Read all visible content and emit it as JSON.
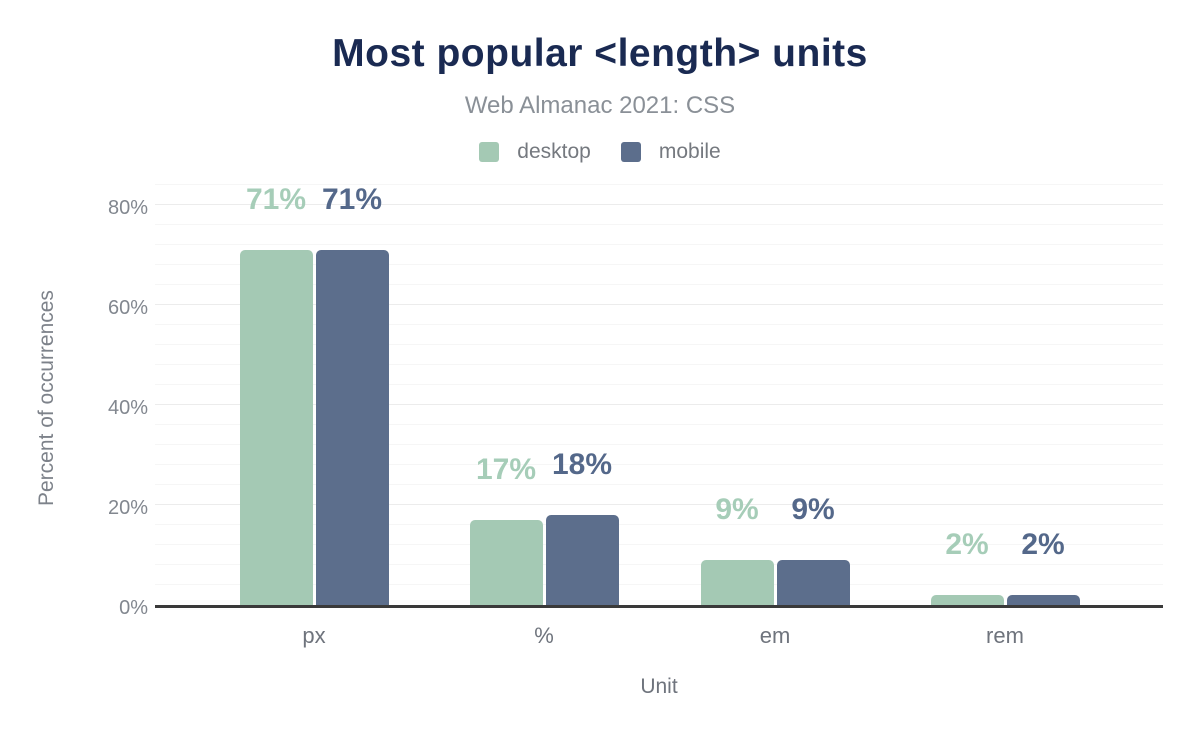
{
  "chart_data": {
    "type": "bar",
    "title": "Most popular <length> units",
    "subtitle": "Web Almanac 2021: CSS",
    "xlabel": "Unit",
    "ylabel": "Percent of occurrences",
    "categories": [
      "px",
      "%",
      "em",
      "rem"
    ],
    "series": [
      {
        "name": "desktop",
        "color": "#a4c9b4",
        "label_color": "#a6cdb8",
        "values": [
          71,
          17,
          9,
          2
        ],
        "labels": [
          "71%",
          "17%",
          "9%",
          "2%"
        ]
      },
      {
        "name": "mobile",
        "color": "#5c6e8c",
        "label_color": "#54688a",
        "values": [
          71,
          18,
          9,
          2
        ],
        "labels": [
          "71%",
          "18%",
          "9%",
          "2%"
        ]
      }
    ],
    "yticks": [
      {
        "value": 0,
        "label": "0%"
      },
      {
        "value": 20,
        "label": "20%"
      },
      {
        "value": 40,
        "label": "40%"
      },
      {
        "value": 60,
        "label": "60%"
      },
      {
        "value": 80,
        "label": "80%"
      }
    ],
    "ylim": [
      0,
      84
    ],
    "grid": {
      "minor_step": 4,
      "major_step": 20,
      "visible": true
    },
    "legend_position": "top"
  },
  "colors": {
    "title": "#1a2a52",
    "subtitle": "#8a9097",
    "tick": "#82878f",
    "category": "#6f747d",
    "axis_line": "#3a3a3a",
    "grid_major": "#ececec",
    "grid_minor": "#f6f6f6",
    "legend_text": "#75797f",
    "y_title": "#7d828a"
  }
}
